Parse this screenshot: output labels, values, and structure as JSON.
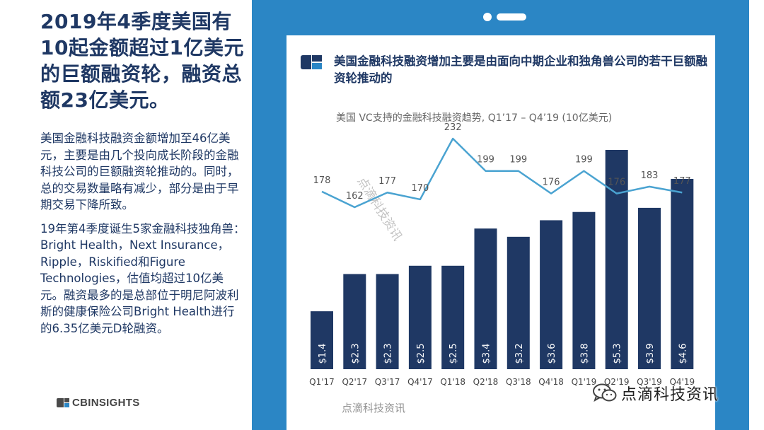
{
  "left": {
    "headline": "2019年4季度美国有10起金额超过1亿美元的巨额融资轮，融资总额23亿美元。",
    "para1": "美国金融科技融资金额增加至46亿美元，主要是由几个投向成长阶段的金融科技公司的巨额融资轮推动的。同时，总的交易数量略有减少，部分是由于早期交易下降所致。",
    "para2": "19年第4季度诞生5家金融科技独角兽：Bright Health，Next Insurance，Ripple，Riskified和Figure Technologies，估值均超过10亿美元。融资最多的是总部位于明尼阿波利斯的健康保险公司Bright Health进行的6.35亿美元D轮融资。",
    "logo_text": "CBINSIGHTS"
  },
  "card": {
    "title": "美国金融科技融资增加主要是由面向中期企业和独角兽公司的若干巨额融资轮推动的"
  },
  "watermarks": {
    "diagonal": "点滴科技资讯",
    "bottom": "点滴科技资讯",
    "wechat": "点滴科技资讯"
  },
  "colors": {
    "navy": "#1f3864",
    "tablet_blue": "#2b86c5",
    "line": "#4aa3d1",
    "bar": "#1f3864"
  },
  "chart_data": {
    "type": "bar",
    "title": "美国 VC支持的金融科技融资趋势, Q1’17 –  Q4’19 (10亿美元)",
    "categories": [
      "Q1'17",
      "Q2'17",
      "Q3'17",
      "Q4'17",
      "Q1'18",
      "Q2'18",
      "Q3'18",
      "Q4'18",
      "Q1'19",
      "Q2'19",
      "Q3'19",
      "Q4'19"
    ],
    "series": [
      {
        "type": "bar",
        "values": [
          1.4,
          2.3,
          2.3,
          2.5,
          2.5,
          3.4,
          3.2,
          3.6,
          3.8,
          5.3,
          3.9,
          4.6
        ],
        "labels": [
          "$1.4",
          "$2.3",
          "$2.3",
          "$2.5",
          "$2.5",
          "$3.4",
          "$3.2",
          "$3.6",
          "$3.8",
          "$5.3",
          "$3.9",
          "$4.6"
        ]
      },
      {
        "type": "line",
        "values": [
          178,
          162,
          177,
          170,
          232,
          199,
          199,
          176,
          199,
          176,
          183,
          177
        ]
      }
    ],
    "grid": false,
    "legend": "none"
  }
}
